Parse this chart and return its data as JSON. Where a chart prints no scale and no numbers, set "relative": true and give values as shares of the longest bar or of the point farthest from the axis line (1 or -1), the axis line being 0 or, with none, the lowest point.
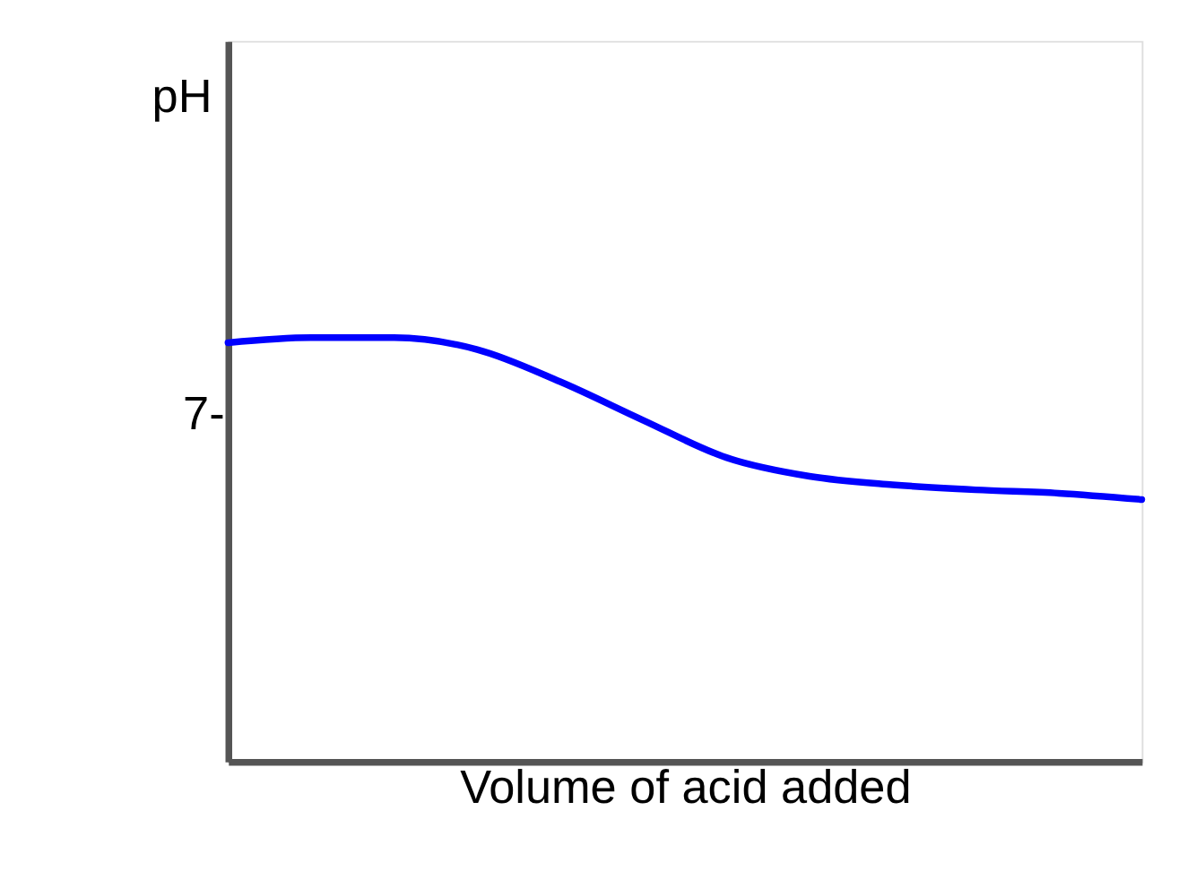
{
  "chart_data": {
    "type": "line",
    "relative": true,
    "xlabel": "Volume of acid added",
    "ylabel": "pH",
    "categories": [
      null,
      null,
      null,
      null,
      null,
      null,
      null,
      null,
      null,
      null,
      null,
      null
    ],
    "series": [
      {
        "color": "#0000ff",
        "values": [
          0.988,
          1,
          1,
          0.972,
          0.896,
          0.805,
          0.717,
          0.673,
          0.653,
          0.641,
          0.633,
          0.618
        ]
      }
    ],
    "annotations": [
      "7-"
    ],
    "marker": "none",
    "line_style": "solid",
    "grid": false
  }
}
